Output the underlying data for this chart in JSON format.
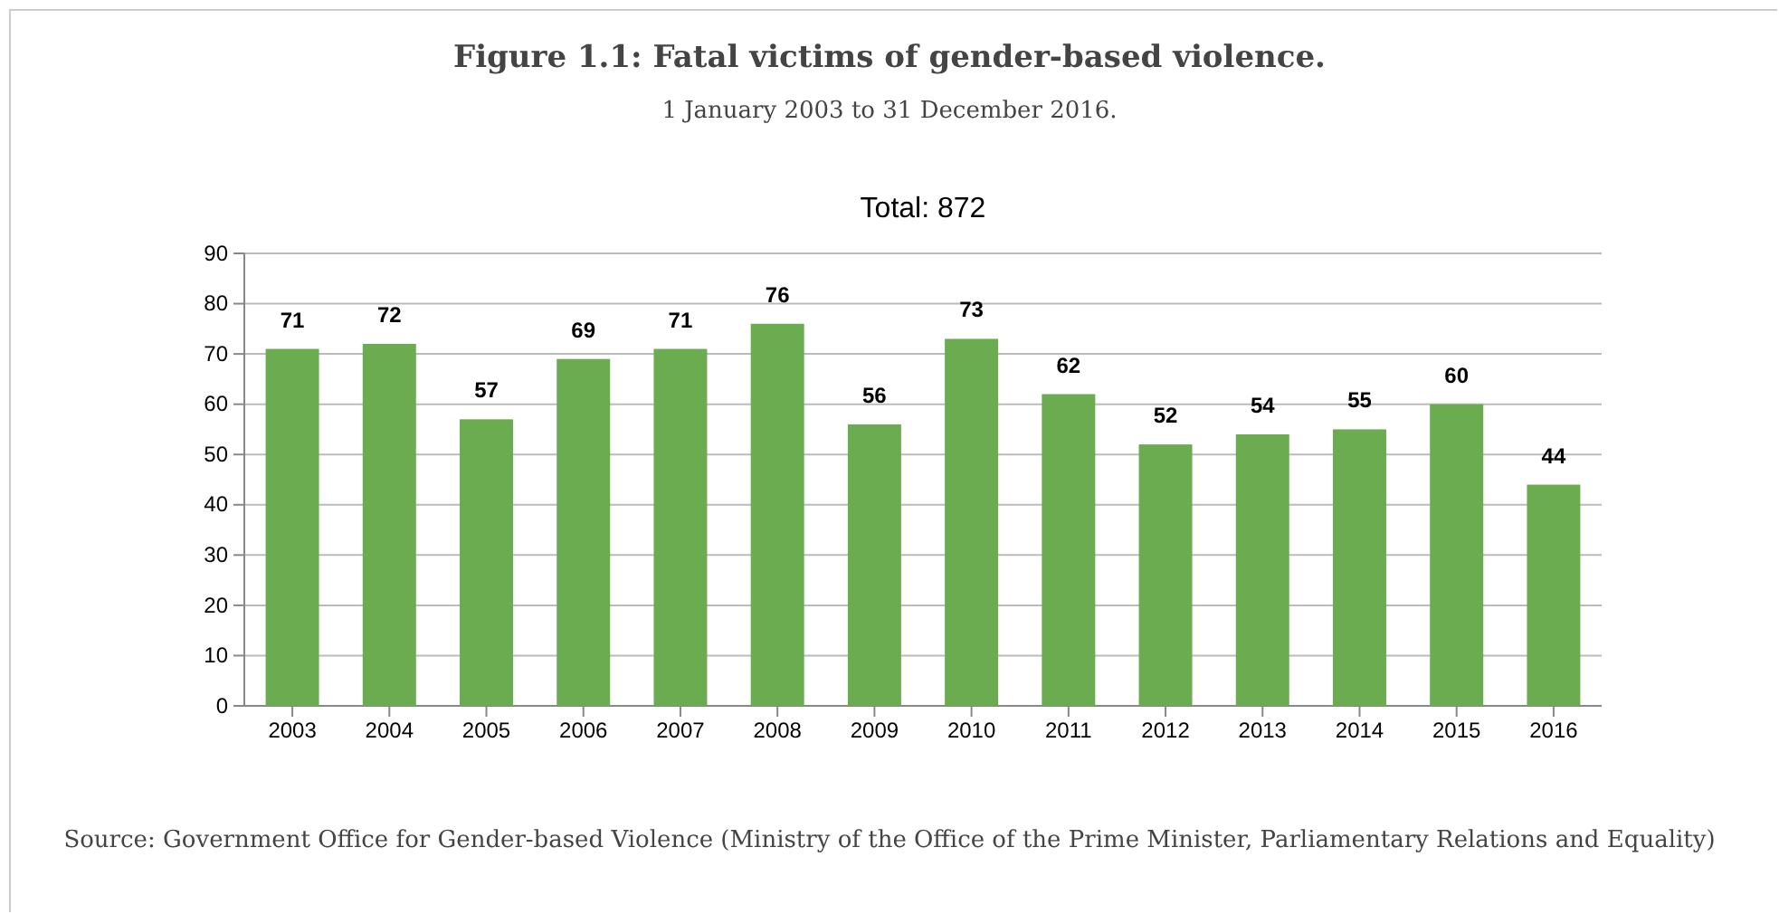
{
  "chart_data": {
    "type": "bar",
    "title": "Figure 1.1: Fatal victims of gender-based violence.",
    "subtitle": "1 January 2003 to 31 December 2016.",
    "annotations": [
      "Total: 872",
      "Source: Government Office for Gender-based Violence (Ministry of the Office of the Prime Minister, Parliamentary Relations and Equality)"
    ],
    "categories": [
      "2003",
      "2004",
      "2005",
      "2006",
      "2007",
      "2008",
      "2009",
      "2010",
      "2011",
      "2012",
      "2013",
      "2014",
      "2015",
      "2016"
    ],
    "values": [
      71,
      72,
      57,
      69,
      71,
      76,
      56,
      73,
      62,
      52,
      54,
      55,
      60,
      44
    ],
    "color": "#6aac4f",
    "ylim": [
      0,
      90
    ],
    "yticks": [
      0,
      10,
      20,
      30,
      40,
      50,
      60,
      70,
      80,
      90
    ],
    "grid": "y",
    "data_labels": true
  }
}
